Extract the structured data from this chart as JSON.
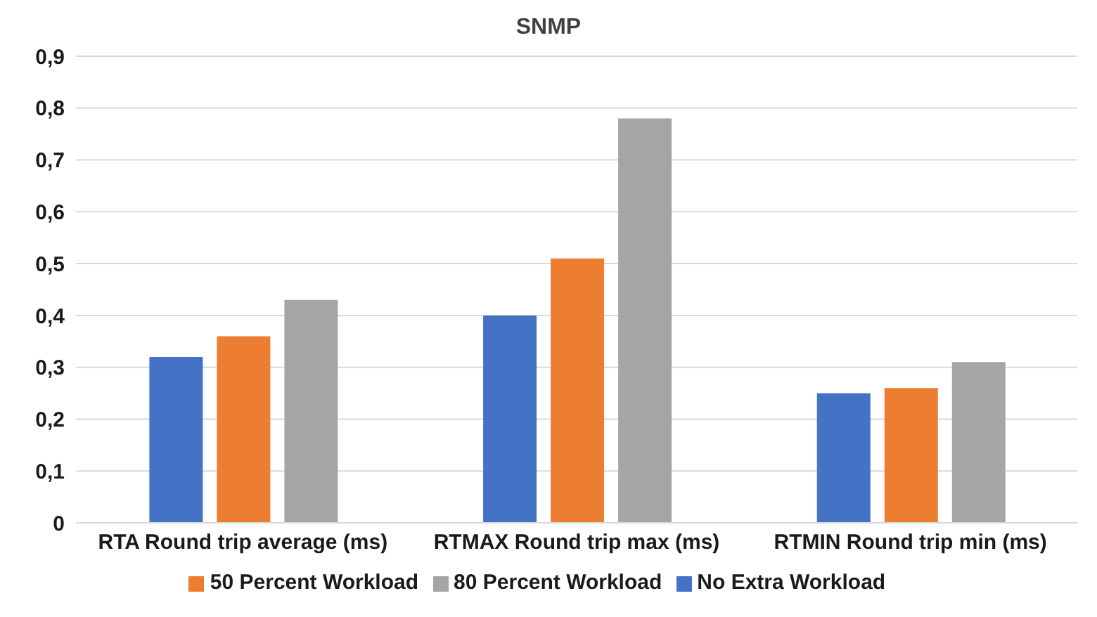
{
  "chart_data": {
    "type": "bar",
    "title": "SNMP",
    "categories": [
      "RTA Round trip average (ms)",
      "RTMAX Round trip max (ms)",
      "RTMIN Round trip min (ms)"
    ],
    "series": [
      {
        "name": "No Extra Workload",
        "color": "#4472c4",
        "values": [
          0.32,
          0.4,
          0.25
        ]
      },
      {
        "name": "50 Percent Workload",
        "color": "#ed7d31",
        "values": [
          0.36,
          0.51,
          0.26
        ]
      },
      {
        "name": "80 Percent Workload",
        "color": "#a5a5a5",
        "values": [
          0.43,
          0.78,
          0.31
        ]
      }
    ],
    "ylim": [
      0,
      0.9
    ],
    "yticks": [
      0,
      {
        "value": 0.1,
        "label": "0,1"
      },
      {
        "value": 0.2,
        "label": "0,2"
      },
      {
        "value": 0.3,
        "label": "0,3"
      },
      {
        "value": 0.4,
        "label": "0,4"
      },
      {
        "value": 0.5,
        "label": "0,5"
      },
      {
        "value": 0.6,
        "label": "0,6"
      },
      {
        "value": 0.7,
        "label": "0,7"
      },
      {
        "value": 0.8,
        "label": "0,8"
      },
      {
        "value": 0.9,
        "label": "0,9"
      }
    ],
    "grid": "y",
    "legend": "bottom"
  }
}
